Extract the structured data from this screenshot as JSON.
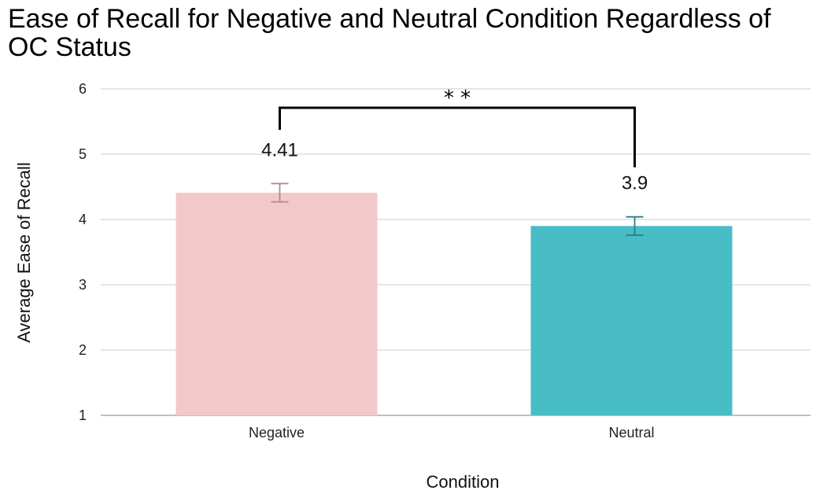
{
  "chart_data": {
    "type": "bar",
    "title": "Ease of Recall for Negative and Neutral Condition Regardless of OC Status",
    "xlabel": "Condition",
    "ylabel": "Average Ease of Recall",
    "categories": [
      "Negative",
      "Neutral"
    ],
    "values": [
      4.41,
      3.9
    ],
    "data_labels": [
      "4.41",
      "3.9"
    ],
    "error": [
      {
        "low": 4.27,
        "high": 4.55
      },
      {
        "low": 3.76,
        "high": 4.04
      }
    ],
    "colors": [
      "#f2c9c9",
      "#48bdc6"
    ],
    "error_colors": [
      "#b08a8a",
      "#2d7f88"
    ],
    "ylim": [
      1,
      6
    ],
    "yticks": [
      "1",
      "2",
      "3",
      "4",
      "5",
      "6"
    ],
    "grid": true,
    "significance": {
      "label": "* *",
      "between": [
        "Negative",
        "Neutral"
      ]
    }
  }
}
